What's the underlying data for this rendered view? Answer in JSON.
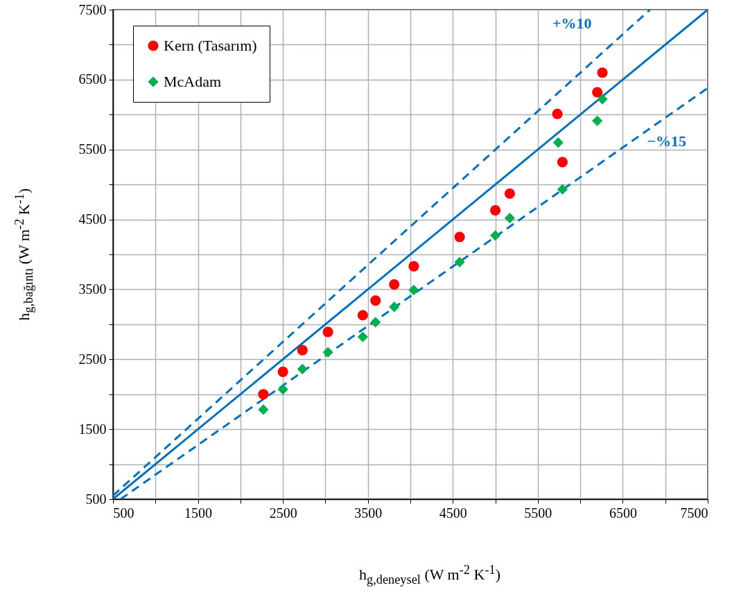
{
  "chart_data": {
    "type": "scatter",
    "xlabel": "h$_{g,deneysel}$ (W m$^{-2}$ K$^{-1}$)",
    "ylabel": "h$_{g,bağıntı}$ (W m$^{-2}$ K$^{-1}$)",
    "x": [
      2270,
      2500,
      2730,
      3030,
      3440,
      3590,
      3810,
      4040,
      4580,
      5000,
      5170,
      5730,
      5790,
      6200,
      6260
    ],
    "series": [
      {
        "name": "Kern (Tasarım)",
        "color": "#ff0000",
        "marker": "circle",
        "values": [
          2000,
          2320,
          2630,
          2890,
          3130,
          3340,
          3570,
          3830,
          4250,
          4630,
          4870,
          6010,
          5320,
          6320,
          6600
        ]
      },
      {
        "name": "McAdam",
        "color": "#00b050",
        "marker": "diamond",
        "x": [
          2270,
          2500,
          2730,
          3030,
          3440,
          3590,
          3810,
          4040,
          4580,
          5000,
          5170,
          5740,
          5790,
          6200,
          6260
        ],
        "values": [
          1780,
          2070,
          2360,
          2600,
          2820,
          3030,
          3250,
          3490,
          3890,
          4270,
          4520,
          5600,
          4930,
          5910,
          6220
        ]
      },
      {
        "type": "line",
        "color": "#0070c0",
        "line_style": "solid",
        "marker": "none",
        "x": [
          500,
          7500
        ],
        "values": [
          500,
          7500
        ]
      },
      {
        "name": "+%10",
        "type": "line",
        "color": "#0070c0",
        "line_style": "dashed",
        "marker": "none",
        "x": [
          500,
          6820
        ],
        "values": [
          550,
          7500
        ]
      },
      {
        "name": "−%15",
        "type": "line",
        "color": "#0070c0",
        "line_style": "dashed",
        "marker": "none",
        "x": [
          590,
          7500
        ],
        "values": [
          500,
          6380
        ]
      }
    ],
    "xlim": [
      500,
      7500
    ],
    "ylim": [
      500,
      7500
    ],
    "xticks": [
      500,
      {
        "value": 1000,
        "label": null
      },
      1500,
      {
        "value": 2000,
        "label": null
      },
      2500,
      {
        "value": 3000,
        "label": null
      },
      3500,
      {
        "value": 4000,
        "label": null
      },
      4500,
      {
        "value": 5000,
        "label": null
      },
      5500,
      {
        "value": 6000,
        "label": null
      },
      6500,
      {
        "value": 7000,
        "label": null
      },
      7500
    ],
    "yticks": [
      500,
      {
        "value": 1000,
        "label": null
      },
      1500,
      {
        "value": 2000,
        "label": null
      },
      2500,
      {
        "value": 3000,
        "label": null
      },
      3500,
      {
        "value": 4000,
        "label": null
      },
      4500,
      {
        "value": 5000,
        "label": null
      },
      5500,
      {
        "value": 6000,
        "label": null
      },
      6500,
      {
        "value": 7000,
        "label": null
      },
      7500
    ],
    "grid": true,
    "legend": "top left"
  }
}
